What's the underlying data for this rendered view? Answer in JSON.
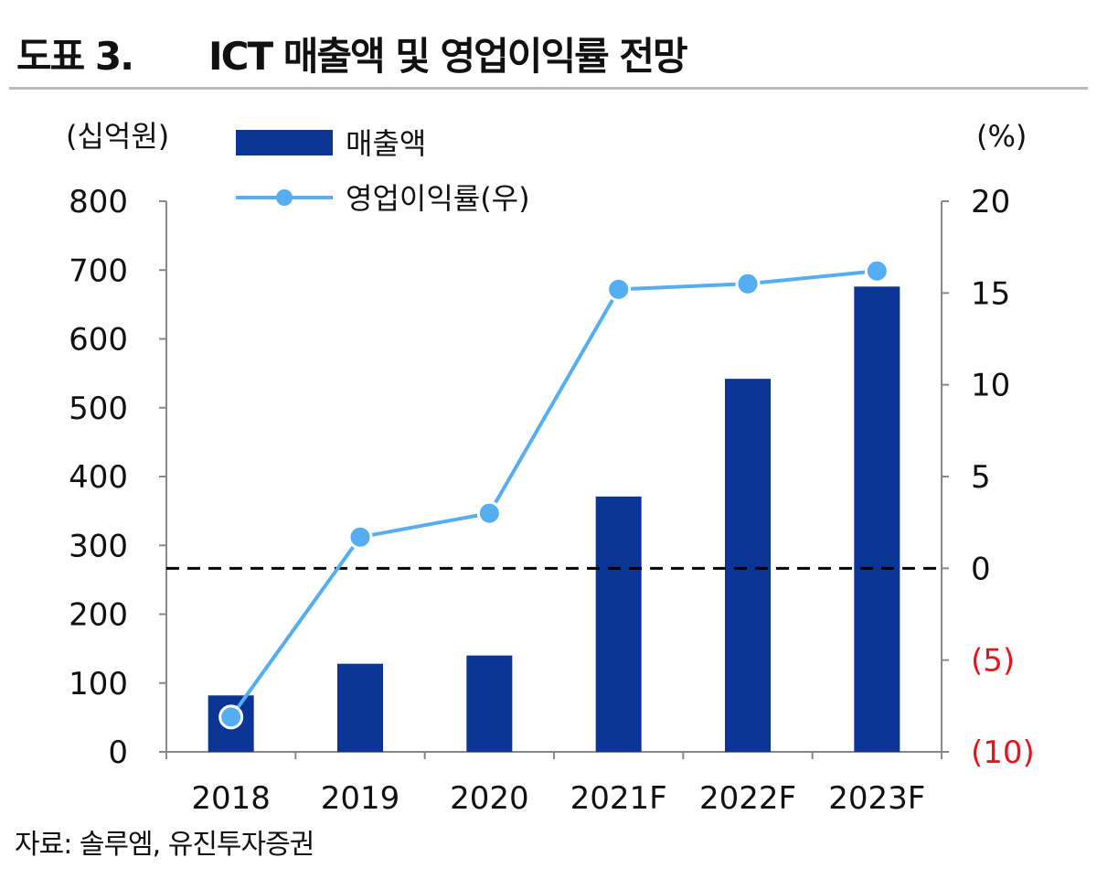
{
  "header": {
    "label": "도표 3.",
    "title": "ICT 매출액 및 영업이익률 전망"
  },
  "source": "자료: 솔루엠, 유진투자증권",
  "chart_data": {
    "type": "bar+line",
    "title": "ICT 매출액 및 영업이익률 전망",
    "categories": [
      "2018",
      "2019",
      "2020",
      "2021F",
      "2022F",
      "2023F"
    ],
    "left_axis": {
      "unit_label": "(십억원)",
      "ylim": [
        0,
        800
      ],
      "ticks": [
        "0",
        "100",
        "200",
        "300",
        "400",
        "500",
        "600",
        "700",
        "800"
      ]
    },
    "right_axis": {
      "unit_label": "(%)",
      "ylim": [
        -10,
        20
      ],
      "ticks": [
        "(10)",
        "(5)",
        "0",
        "5",
        "10",
        "15",
        "20"
      ],
      "tick_values": [
        -10,
        -5,
        0,
        5,
        10,
        15,
        20
      ],
      "negative_color": "#e8141c"
    },
    "series": [
      {
        "name": "매출액",
        "type": "bar",
        "axis": "left",
        "color": "#0a3595",
        "values": [
          82,
          128,
          140,
          371,
          542,
          676
        ]
      },
      {
        "name": "영업이익률(우)",
        "type": "line",
        "axis": "right",
        "color": "#55adf2",
        "values": [
          -8.1,
          1.7,
          3.0,
          15.2,
          15.5,
          16.2
        ]
      }
    ],
    "reference_line": {
      "axis": "right",
      "value": 0,
      "style": "dashed",
      "color": "#000000"
    },
    "legend": "top-center",
    "grid": false
  }
}
